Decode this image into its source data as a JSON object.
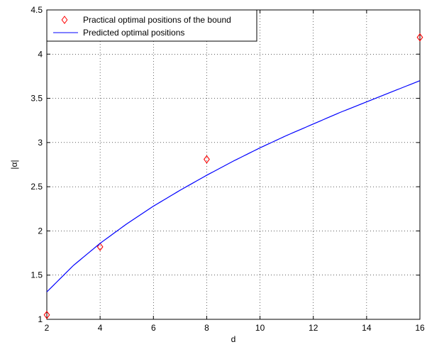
{
  "chart_data": {
    "type": "scatter",
    "xlabel": "d",
    "ylabel": "|α|",
    "xlim": [
      2,
      16
    ],
    "ylim": [
      1,
      4.5
    ],
    "xticks": [
      "2",
      "4",
      "6",
      "8",
      "10",
      "12",
      "14",
      "16"
    ],
    "yticks": [
      "1",
      "1.5",
      "2",
      "2.5",
      "3",
      "3.5",
      "4",
      "4.5"
    ],
    "grid": true,
    "legend_position": "top-left",
    "series": [
      {
        "name": "Practical optimal positions of the bound",
        "kind": "scatter",
        "marker": "diamond",
        "color": "#ff0000",
        "x": [
          2,
          4,
          8,
          16
        ],
        "y": [
          1.05,
          1.82,
          2.81,
          4.19
        ]
      },
      {
        "name": "Predicted optimal positions",
        "kind": "line",
        "color": "#0000ff",
        "x": [
          2,
          3,
          4,
          5,
          6,
          7,
          8,
          9,
          10,
          11,
          12,
          13,
          14,
          15,
          16
        ],
        "y": [
          1.31,
          1.61,
          1.86,
          2.08,
          2.28,
          2.46,
          2.63,
          2.79,
          2.94,
          3.08,
          3.21,
          3.34,
          3.46,
          3.58,
          3.7
        ]
      }
    ]
  }
}
